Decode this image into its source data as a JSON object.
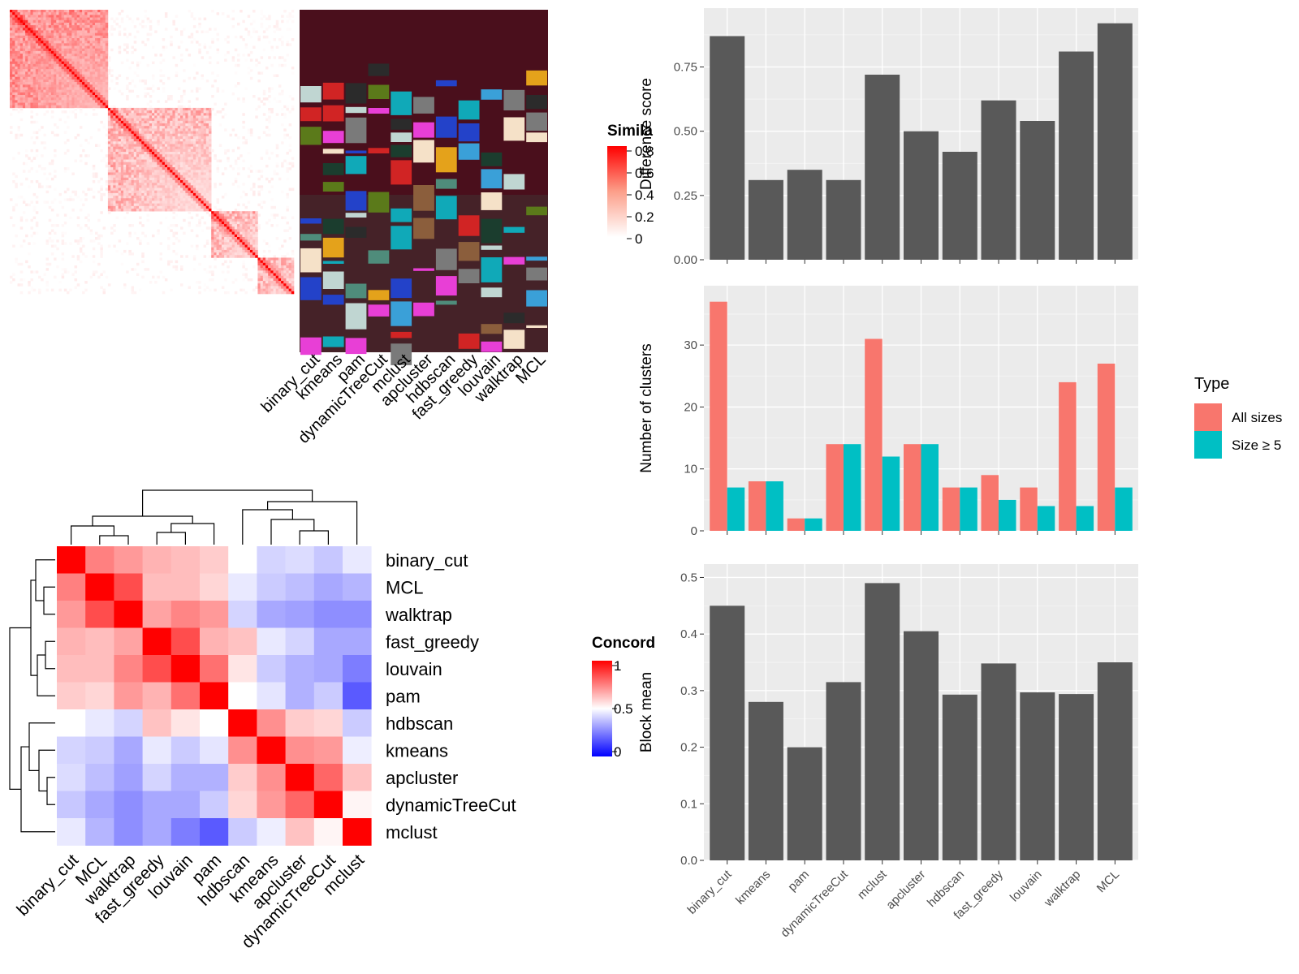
{
  "similarity_panel": {
    "legend_title": "Simila",
    "legend_ticks": [
      "0.8",
      "0.6",
      "0.4",
      "0.2",
      "0"
    ],
    "method_labels": [
      "binary_cut",
      "kmeans",
      "pam",
      "dynamicTreeCut",
      "mclust",
      "apcluster",
      "hdbscan",
      "fast_greedy",
      "louvain",
      "walktrap",
      "MCL"
    ]
  },
  "concordance_panel": {
    "legend_title": "Concord",
    "legend_ticks": [
      "1",
      "0.5",
      "0"
    ],
    "row_labels": [
      "binary_cut",
      "MCL",
      "walktrap",
      "fast_greedy",
      "louvain",
      "pam",
      "hdbscan",
      "kmeans",
      "apcluster",
      "dynamicTreeCut",
      "mclust"
    ],
    "col_labels": [
      "binary_cut",
      "MCL",
      "walktrap",
      "fast_greedy",
      "louvain",
      "pam",
      "hdbscan",
      "kmeans",
      "apcluster",
      "dynamicTreeCut",
      "mclust"
    ]
  },
  "chart_data": [
    {
      "type": "bar",
      "categories": [
        "binary_cut",
        "kmeans",
        "pam",
        "dynamicTreeCut",
        "mclust",
        "apcluster",
        "hdbscan",
        "fast_greedy",
        "louvain",
        "walktrap",
        "MCL"
      ],
      "values": [
        0.87,
        0.31,
        0.35,
        0.31,
        0.72,
        0.5,
        0.42,
        0.62,
        0.54,
        0.81,
        0.92
      ],
      "ylabel": "Difference score",
      "yticks": [
        "0.00",
        "0.25",
        "0.50",
        "0.75"
      ],
      "ylim": [
        0,
        0.96
      ],
      "color": "#595959"
    },
    {
      "type": "bar",
      "categories": [
        "binary_cut",
        "kmeans",
        "pam",
        "dynamicTreeCut",
        "mclust",
        "apcluster",
        "hdbscan",
        "fast_greedy",
        "louvain",
        "walktrap",
        "MCL"
      ],
      "series": [
        {
          "name": "All sizes",
          "color": "#F8766D",
          "values": [
            37,
            8,
            2,
            14,
            31,
            14,
            7,
            9,
            7,
            24,
            27
          ]
        },
        {
          "name": "Size ≥ 5",
          "color": "#00BFC4",
          "values": [
            7,
            8,
            2,
            14,
            12,
            14,
            7,
            5,
            4,
            4,
            7
          ]
        }
      ],
      "ylabel": "Number of clusters",
      "yticks": [
        "0",
        "10",
        "20",
        "30"
      ],
      "ylim": [
        0,
        38.8
      ],
      "legend_title": "Type",
      "legend_position": "right"
    },
    {
      "type": "bar",
      "categories": [
        "binary_cut",
        "kmeans",
        "pam",
        "dynamicTreeCut",
        "mclust",
        "apcluster",
        "hdbscan",
        "fast_greedy",
        "louvain",
        "walktrap",
        "MCL"
      ],
      "values": [
        0.45,
        0.28,
        0.2,
        0.315,
        0.49,
        0.405,
        0.293,
        0.348,
        0.297,
        0.294,
        0.35
      ],
      "ylabel": "Block mean",
      "yticks": [
        "0.0",
        "0.1",
        "0.2",
        "0.3",
        "0.4",
        "0.5"
      ],
      "ylim": [
        0,
        0.515
      ],
      "color": "#595959"
    },
    {
      "type": "heatmap",
      "rows": [
        "binary_cut",
        "MCL",
        "walktrap",
        "fast_greedy",
        "louvain",
        "pam",
        "hdbscan",
        "kmeans",
        "apcluster",
        "dynamicTreeCut",
        "mclust"
      ],
      "cols": [
        "binary_cut",
        "MCL",
        "walktrap",
        "fast_greedy",
        "louvain",
        "pam",
        "hdbscan",
        "kmeans",
        "apcluster",
        "dynamicTreeCut",
        "mclust"
      ],
      "values": [
        [
          1.0,
          0.75,
          0.7,
          0.65,
          0.63,
          0.6,
          0.5,
          0.4,
          0.42,
          0.37,
          0.45
        ],
        [
          0.75,
          1.0,
          0.85,
          0.63,
          0.63,
          0.58,
          0.45,
          0.38,
          0.35,
          0.3,
          0.33
        ],
        [
          0.7,
          0.85,
          1.0,
          0.68,
          0.74,
          0.7,
          0.4,
          0.3,
          0.28,
          0.24,
          0.24
        ],
        [
          0.65,
          0.63,
          0.68,
          1.0,
          0.85,
          0.65,
          0.62,
          0.45,
          0.4,
          0.3,
          0.3
        ],
        [
          0.63,
          0.63,
          0.74,
          0.85,
          1.0,
          0.78,
          0.55,
          0.38,
          0.32,
          0.3,
          0.2
        ],
        [
          0.6,
          0.58,
          0.7,
          0.65,
          0.78,
          1.0,
          0.5,
          0.44,
          0.32,
          0.38,
          0.12
        ],
        [
          0.5,
          0.45,
          0.4,
          0.62,
          0.55,
          0.5,
          1.0,
          0.72,
          0.6,
          0.58,
          0.38
        ],
        [
          0.4,
          0.38,
          0.3,
          0.45,
          0.38,
          0.44,
          0.72,
          1.0,
          0.72,
          0.7,
          0.46
        ],
        [
          0.42,
          0.35,
          0.28,
          0.4,
          0.32,
          0.32,
          0.6,
          0.72,
          1.0,
          0.8,
          0.62
        ],
        [
          0.37,
          0.3,
          0.24,
          0.3,
          0.3,
          0.38,
          0.58,
          0.7,
          0.8,
          1.0,
          0.52
        ],
        [
          0.45,
          0.33,
          0.24,
          0.3,
          0.2,
          0.12,
          0.38,
          0.46,
          0.62,
          0.52,
          1.0
        ]
      ],
      "legend_title": "Concord",
      "range": [
        0,
        1
      ]
    }
  ]
}
